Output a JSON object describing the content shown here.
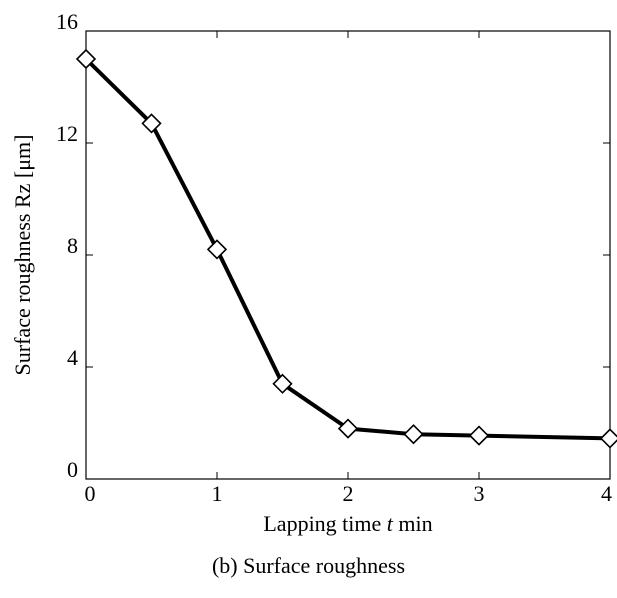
{
  "chart_data": {
    "type": "line",
    "x": [
      0,
      0.5,
      1,
      1.5,
      2,
      2.5,
      3,
      4
    ],
    "series": [
      {
        "values": [
          15.0,
          12.7,
          8.2,
          3.4,
          1.8,
          1.6,
          1.55,
          1.45
        ]
      }
    ],
    "x_ticks": [
      "0",
      "1",
      "2",
      "3",
      "4"
    ],
    "y_ticks": [
      "0",
      "4",
      "8",
      "12",
      "16"
    ],
    "xlim": [
      0,
      4
    ],
    "ylim": [
      0,
      16
    ],
    "xlabel_parts": [
      "Lapping time ",
      "t",
      " min"
    ],
    "ylabel": "Surface roughness Rz [μm]",
    "grid": false,
    "marker": "open diamond",
    "line_color": "#000000"
  },
  "caption": "(b) Surface roughness"
}
